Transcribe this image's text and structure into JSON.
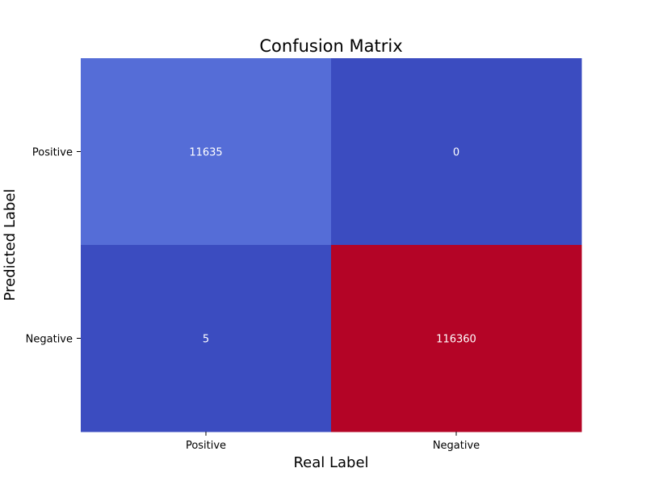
{
  "chart_data": {
    "type": "heatmap",
    "title": "Confusion Matrix",
    "xlabel": "Real Label",
    "ylabel": "Predicted Label",
    "x_categories": [
      "Positive",
      "Negative"
    ],
    "y_categories": [
      "Positive",
      "Negative"
    ],
    "values": [
      [
        11635,
        0
      ],
      [
        5,
        116360
      ]
    ],
    "colormap": "coolwarm",
    "colorbar": false,
    "annotations": true
  }
}
